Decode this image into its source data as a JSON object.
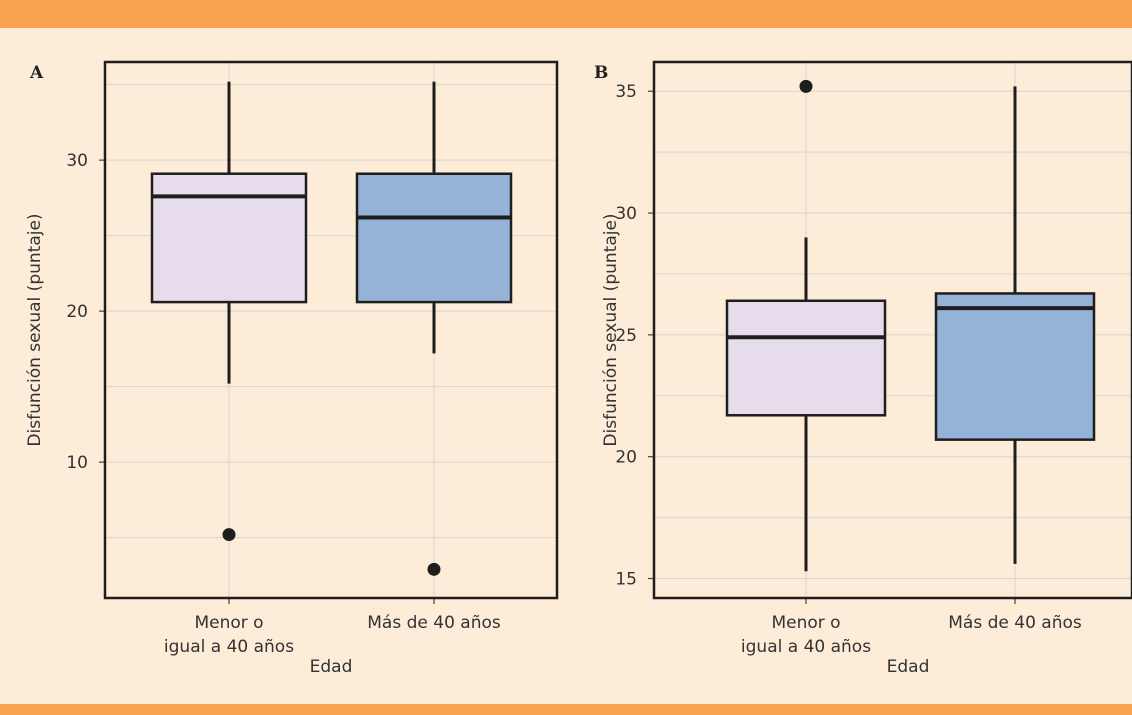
{
  "colors": {
    "background": "#fdecd8",
    "band": "#f9a34f",
    "box_fill_1": "#e6dcec",
    "box_fill_2": "#95b3d7",
    "stroke": "#1e1e1e",
    "grid": "#d5d5d5"
  },
  "chart_data": [
    {
      "type": "boxplot",
      "panel_label": "A",
      "xlabel": "Edad",
      "ylabel": "Disfunción sexual (puntaje)",
      "ylim": [
        1,
        36.5
      ],
      "yticks": [
        10,
        20,
        30
      ],
      "y_minor_grid": [
        5,
        15,
        25,
        35
      ],
      "grid": true,
      "categories": [
        {
          "label_lines": [
            "Menor o",
            "igual a 40 años"
          ],
          "min": 15.2,
          "q1": 20.6,
          "median": 27.6,
          "q3": 29.1,
          "max": 35.2,
          "outliers": [
            5.2
          ],
          "fill": "#e6dcec"
        },
        {
          "label_lines": [
            "Más de 40 años"
          ],
          "min": 17.2,
          "q1": 20.6,
          "median": 26.2,
          "q3": 29.1,
          "max": 35.2,
          "outliers": [
            2.9
          ],
          "fill": "#95b3d7"
        }
      ]
    },
    {
      "type": "boxplot",
      "panel_label": "B",
      "xlabel": "Edad",
      "ylabel": "Disfunción sexual (puntaje)",
      "ylim": [
        14.2,
        36.2
      ],
      "yticks": [
        15,
        20,
        25,
        30,
        35
      ],
      "y_minor_grid": [
        17.5,
        22.5,
        27.5,
        32.5
      ],
      "grid": true,
      "categories": [
        {
          "label_lines": [
            "Menor o",
            "igual a 40 años"
          ],
          "min": 15.3,
          "q1": 21.7,
          "median": 24.9,
          "q3": 26.4,
          "max": 29.0,
          "outliers": [
            35.2
          ],
          "fill": "#e6dcec"
        },
        {
          "label_lines": [
            "Más de 40 años"
          ],
          "min": 15.6,
          "q1": 20.7,
          "median": 26.1,
          "q3": 26.7,
          "max": 35.2,
          "outliers": [],
          "fill": "#95b3d7"
        }
      ]
    }
  ]
}
